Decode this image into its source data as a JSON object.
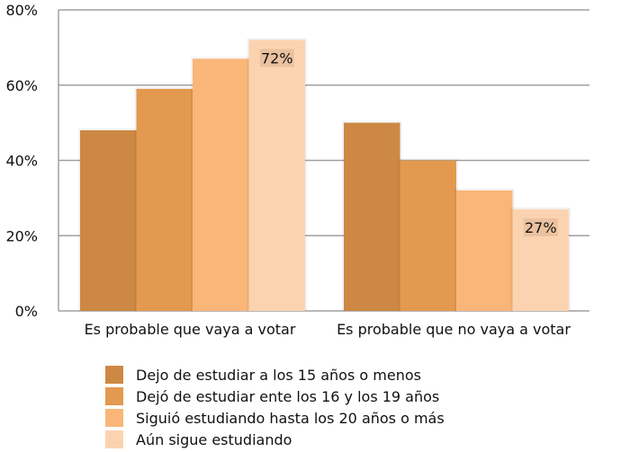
{
  "chart_data": {
    "type": "bar",
    "title": "",
    "xlabel": "",
    "ylabel": "",
    "ylim": [
      0,
      80
    ],
    "yticks": [
      "0%",
      "20%",
      "40%",
      "60%",
      "80%"
    ],
    "grid": true,
    "legend_position": "bottom",
    "categories": [
      "Es probable que vaya a votar",
      "Es probable que no vaya a votar"
    ],
    "series": [
      {
        "name": "Dejo de estudiar a los 15 años o menos",
        "values": [
          48,
          50
        ],
        "color": "#cd8844"
      },
      {
        "name": "Dejó de estudiar ente los 16 y los 19 años",
        "values": [
          59,
          40
        ],
        "color": "#e3994f"
      },
      {
        "name": "Siguió estudiando hasta los 20 años o más",
        "values": [
          67,
          32
        ],
        "color": "#f9b678"
      },
      {
        "name": "Aún sigue estudiando",
        "values": [
          72,
          27
        ],
        "color": "#fcd3b0"
      }
    ],
    "data_labels": [
      {
        "series": 3,
        "category": 0,
        "text": "72%"
      },
      {
        "series": 3,
        "category": 1,
        "text": "27%"
      }
    ]
  }
}
